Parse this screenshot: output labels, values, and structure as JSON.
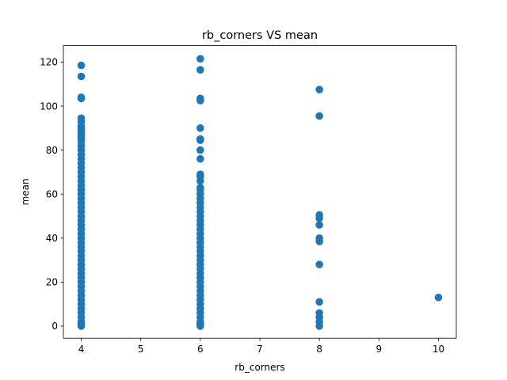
{
  "chart_data": {
    "type": "scatter",
    "title": "rb_corners VS mean",
    "xlabel": "rb_corners",
    "ylabel": "mean",
    "xlim": [
      3.7,
      10.3
    ],
    "ylim": [
      -5.5,
      127.5
    ],
    "xticks": [
      4,
      5,
      6,
      7,
      8,
      9,
      10
    ],
    "yticks": [
      0,
      20,
      40,
      60,
      80,
      100,
      120
    ],
    "grid": false,
    "marker_color": "#1f77b4",
    "points": [
      {
        "x": 4,
        "y": 118.5
      },
      {
        "x": 4,
        "y": 113.5
      },
      {
        "x": 4,
        "y": 104
      },
      {
        "x": 4,
        "y": 103.5
      },
      {
        "x": 4,
        "y": 94.5
      },
      {
        "x": 4,
        "y": 93
      },
      {
        "x": 4,
        "y": 91
      },
      {
        "x": 4,
        "y": 90
      },
      {
        "x": 4,
        "y": 89
      },
      {
        "x": 4,
        "y": 88
      },
      {
        "x": 4,
        "y": 87
      },
      {
        "x": 4,
        "y": 86
      },
      {
        "x": 4,
        "y": 85
      },
      {
        "x": 4,
        "y": 84
      },
      {
        "x": 4,
        "y": 82
      },
      {
        "x": 4,
        "y": 80
      },
      {
        "x": 4,
        "y": 78
      },
      {
        "x": 4,
        "y": 76
      },
      {
        "x": 4,
        "y": 74
      },
      {
        "x": 4,
        "y": 72
      },
      {
        "x": 4,
        "y": 70
      },
      {
        "x": 4,
        "y": 68
      },
      {
        "x": 4,
        "y": 66
      },
      {
        "x": 4,
        "y": 64
      },
      {
        "x": 4,
        "y": 62
      },
      {
        "x": 4,
        "y": 60
      },
      {
        "x": 4,
        "y": 58
      },
      {
        "x": 4,
        "y": 56
      },
      {
        "x": 4,
        "y": 54
      },
      {
        "x": 4,
        "y": 52
      },
      {
        "x": 4,
        "y": 50
      },
      {
        "x": 4,
        "y": 48
      },
      {
        "x": 4,
        "y": 46
      },
      {
        "x": 4,
        "y": 44
      },
      {
        "x": 4,
        "y": 42
      },
      {
        "x": 4,
        "y": 40
      },
      {
        "x": 4,
        "y": 38
      },
      {
        "x": 4,
        "y": 36
      },
      {
        "x": 4,
        "y": 34
      },
      {
        "x": 4,
        "y": 32
      },
      {
        "x": 4,
        "y": 30
      },
      {
        "x": 4,
        "y": 28
      },
      {
        "x": 4,
        "y": 26
      },
      {
        "x": 4,
        "y": 24
      },
      {
        "x": 4,
        "y": 22
      },
      {
        "x": 4,
        "y": 20
      },
      {
        "x": 4,
        "y": 18
      },
      {
        "x": 4,
        "y": 16
      },
      {
        "x": 4,
        "y": 14
      },
      {
        "x": 4,
        "y": 12
      },
      {
        "x": 4,
        "y": 10
      },
      {
        "x": 4,
        "y": 8
      },
      {
        "x": 4,
        "y": 6
      },
      {
        "x": 4,
        "y": 4
      },
      {
        "x": 4,
        "y": 2
      },
      {
        "x": 4,
        "y": 1
      },
      {
        "x": 4,
        "y": 0
      },
      {
        "x": 6,
        "y": 121.5
      },
      {
        "x": 6,
        "y": 116.5
      },
      {
        "x": 6,
        "y": 103.5
      },
      {
        "x": 6,
        "y": 102.5
      },
      {
        "x": 6,
        "y": 90
      },
      {
        "x": 6,
        "y": 85
      },
      {
        "x": 6,
        "y": 84.5
      },
      {
        "x": 6,
        "y": 80
      },
      {
        "x": 6,
        "y": 76
      },
      {
        "x": 6,
        "y": 69
      },
      {
        "x": 6,
        "y": 68
      },
      {
        "x": 6,
        "y": 66
      },
      {
        "x": 6,
        "y": 63
      },
      {
        "x": 6,
        "y": 62
      },
      {
        "x": 6,
        "y": 60
      },
      {
        "x": 6,
        "y": 58
      },
      {
        "x": 6,
        "y": 56
      },
      {
        "x": 6,
        "y": 54
      },
      {
        "x": 6,
        "y": 52
      },
      {
        "x": 6,
        "y": 50
      },
      {
        "x": 6,
        "y": 48
      },
      {
        "x": 6,
        "y": 46
      },
      {
        "x": 6,
        "y": 44
      },
      {
        "x": 6,
        "y": 42
      },
      {
        "x": 6,
        "y": 40
      },
      {
        "x": 6,
        "y": 38
      },
      {
        "x": 6,
        "y": 36
      },
      {
        "x": 6,
        "y": 34
      },
      {
        "x": 6,
        "y": 32
      },
      {
        "x": 6,
        "y": 30
      },
      {
        "x": 6,
        "y": 28
      },
      {
        "x": 6,
        "y": 26
      },
      {
        "x": 6,
        "y": 24
      },
      {
        "x": 6,
        "y": 22
      },
      {
        "x": 6,
        "y": 20
      },
      {
        "x": 6,
        "y": 18
      },
      {
        "x": 6,
        "y": 16
      },
      {
        "x": 6,
        "y": 14
      },
      {
        "x": 6,
        "y": 12
      },
      {
        "x": 6,
        "y": 10
      },
      {
        "x": 6,
        "y": 8
      },
      {
        "x": 6,
        "y": 6
      },
      {
        "x": 6,
        "y": 4
      },
      {
        "x": 6,
        "y": 2
      },
      {
        "x": 6,
        "y": 1
      },
      {
        "x": 6,
        "y": 0
      },
      {
        "x": 8,
        "y": 107.5
      },
      {
        "x": 8,
        "y": 95.5
      },
      {
        "x": 8,
        "y": 50.5
      },
      {
        "x": 8,
        "y": 49
      },
      {
        "x": 8,
        "y": 46
      },
      {
        "x": 8,
        "y": 40
      },
      {
        "x": 8,
        "y": 38.5
      },
      {
        "x": 8,
        "y": 28
      },
      {
        "x": 8,
        "y": 11
      },
      {
        "x": 8,
        "y": 6
      },
      {
        "x": 8,
        "y": 4
      },
      {
        "x": 8,
        "y": 2
      },
      {
        "x": 8,
        "y": 0
      },
      {
        "x": 10,
        "y": 13
      }
    ]
  }
}
